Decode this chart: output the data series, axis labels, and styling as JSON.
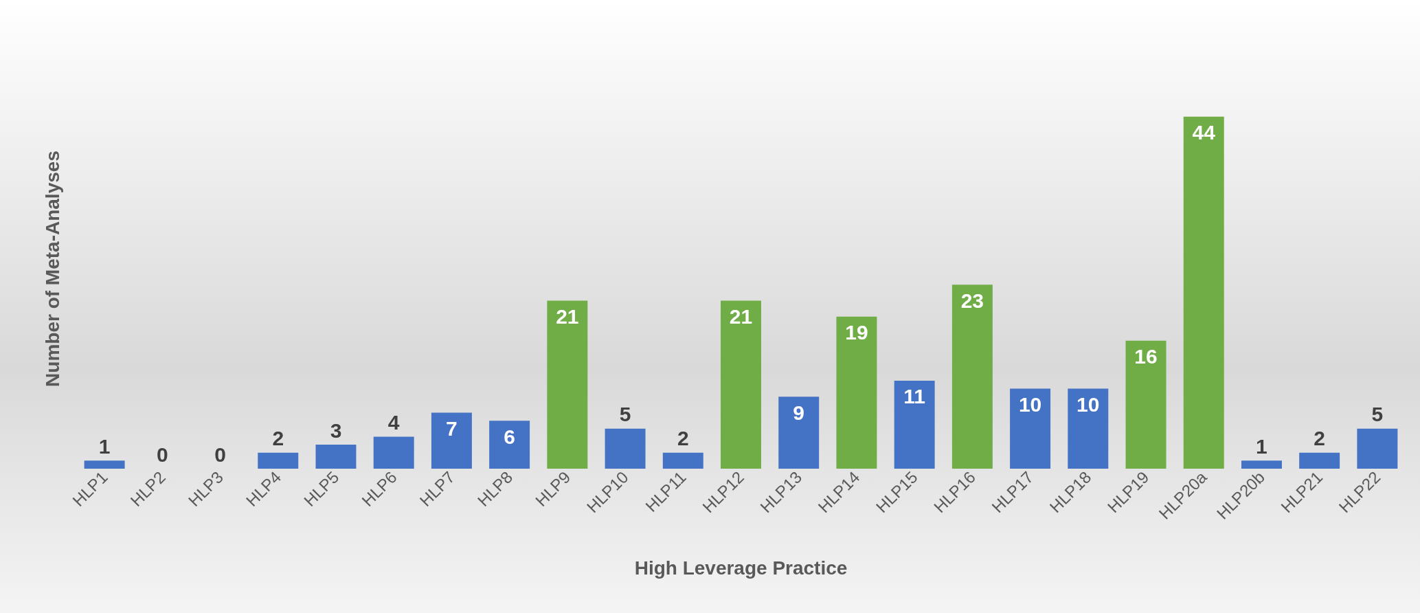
{
  "chart_data": {
    "type": "bar",
    "xlabel": "High Leverage Practice",
    "ylabel": "Number of Meta-Analyses",
    "categories": [
      "HLP1",
      "HLP2",
      "HLP3",
      "HLP4",
      "HLP5",
      "HLP6",
      "HLP7",
      "HLP8",
      "HLP9",
      "HLP10",
      "HLP11",
      "HLP12",
      "HLP13",
      "HLP14",
      "HLP15",
      "HLP16",
      "HLP17",
      "HLP18",
      "HLP19",
      "HLP20a",
      "HLP20b",
      "HLP21",
      "HLP22"
    ],
    "values": [
      1,
      0,
      0,
      2,
      3,
      4,
      7,
      6,
      21,
      5,
      2,
      21,
      9,
      19,
      11,
      23,
      10,
      10,
      16,
      44,
      1,
      2,
      5
    ],
    "colors": [
      "#4472c4",
      "#4472c4",
      "#4472c4",
      "#4472c4",
      "#4472c4",
      "#4472c4",
      "#4472c4",
      "#4472c4",
      "#70ad47",
      "#4472c4",
      "#4472c4",
      "#70ad47",
      "#4472c4",
      "#70ad47",
      "#4472c4",
      "#70ad47",
      "#4472c4",
      "#4472c4",
      "#70ad47",
      "#70ad47",
      "#4472c4",
      "#4472c4",
      "#4472c4"
    ],
    "data_labels": true,
    "grid": false,
    "tick_labels": "x"
  }
}
